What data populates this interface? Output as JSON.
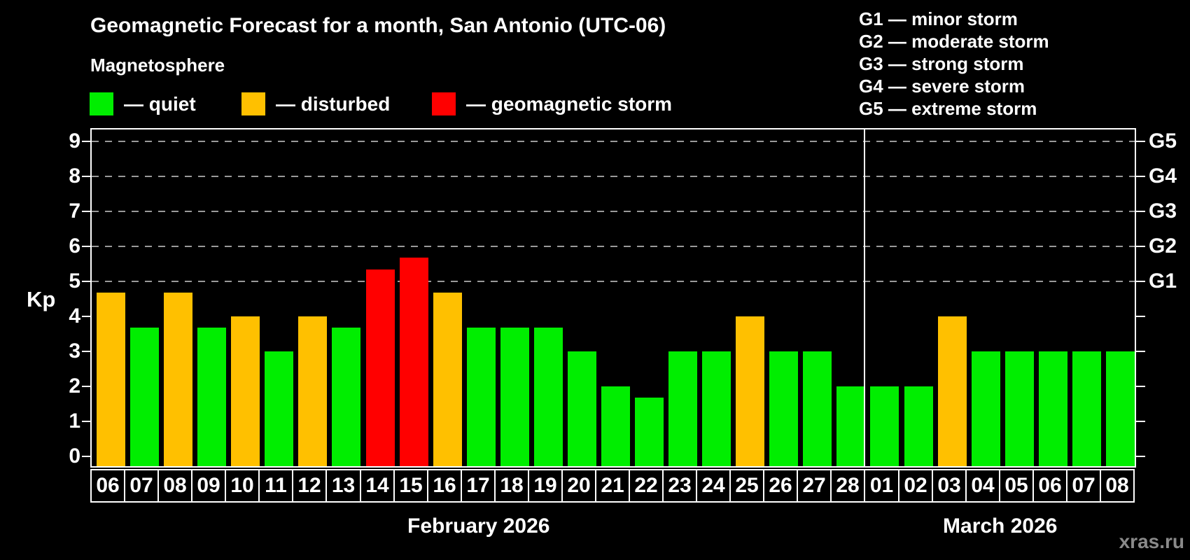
{
  "title": "Geomagnetic Forecast for a month, San Antonio (UTC-06)",
  "subtitle": "Magnetosphere",
  "watermark": "xras.ru",
  "legend": {
    "items": [
      {
        "status": "quiet",
        "label": "— quiet"
      },
      {
        "status": "disturbed",
        "label": "— disturbed"
      },
      {
        "status": "storm",
        "label": "— geomagnetic storm"
      }
    ]
  },
  "g_legend": {
    "items": [
      "G1 — minor storm",
      "G2 — moderate storm",
      "G3 — strong storm",
      "G4 — severe storm",
      "G5 — extreme storm"
    ]
  },
  "chart_data": {
    "type": "bar",
    "title": "Geomagnetic Forecast for a month, San Antonio (UTC-06)",
    "ylabel": "Kp",
    "ylim": [
      0,
      9
    ],
    "y_ticks": [
      0,
      1,
      2,
      3,
      4,
      5,
      6,
      7,
      8,
      9
    ],
    "grid_levels": [
      5,
      6,
      7,
      8,
      9
    ],
    "grid_on": true,
    "legend_position": "top-left",
    "right_axis": [
      {
        "level": 5,
        "label": "G1"
      },
      {
        "level": 6,
        "label": "G2"
      },
      {
        "level": 7,
        "label": "G3"
      },
      {
        "level": 8,
        "label": "G4"
      },
      {
        "level": 9,
        "label": "G5"
      }
    ],
    "status_colors": {
      "quiet": "#00ee00",
      "disturbed": "#ffc000",
      "storm": "#ff0000"
    },
    "months": [
      {
        "label": "February 2026",
        "days": [
          {
            "day": "06",
            "kp": 4.67,
            "status": "disturbed"
          },
          {
            "day": "07",
            "kp": 3.67,
            "status": "quiet"
          },
          {
            "day": "08",
            "kp": 4.67,
            "status": "disturbed"
          },
          {
            "day": "09",
            "kp": 3.67,
            "status": "quiet"
          },
          {
            "day": "10",
            "kp": 4,
            "status": "disturbed"
          },
          {
            "day": "11",
            "kp": 3,
            "status": "quiet"
          },
          {
            "day": "12",
            "kp": 4,
            "status": "disturbed"
          },
          {
            "day": "13",
            "kp": 3.67,
            "status": "quiet"
          },
          {
            "day": "14",
            "kp": 5.33,
            "status": "storm"
          },
          {
            "day": "15",
            "kp": 5.67,
            "status": "storm"
          },
          {
            "day": "16",
            "kp": 4.67,
            "status": "disturbed"
          },
          {
            "day": "17",
            "kp": 3.67,
            "status": "quiet"
          },
          {
            "day": "18",
            "kp": 3.67,
            "status": "quiet"
          },
          {
            "day": "19",
            "kp": 3.67,
            "status": "quiet"
          },
          {
            "day": "20",
            "kp": 3,
            "status": "quiet"
          },
          {
            "day": "21",
            "kp": 2,
            "status": "quiet"
          },
          {
            "day": "22",
            "kp": 1.67,
            "status": "quiet"
          },
          {
            "day": "23",
            "kp": 3,
            "status": "quiet"
          },
          {
            "day": "24",
            "kp": 3,
            "status": "quiet"
          },
          {
            "day": "25",
            "kp": 4,
            "status": "disturbed"
          },
          {
            "day": "26",
            "kp": 3,
            "status": "quiet"
          },
          {
            "day": "27",
            "kp": 3,
            "status": "quiet"
          },
          {
            "day": "28",
            "kp": 2,
            "status": "quiet"
          }
        ]
      },
      {
        "label": "March 2026",
        "days": [
          {
            "day": "01",
            "kp": 2,
            "status": "quiet"
          },
          {
            "day": "02",
            "kp": 2,
            "status": "quiet"
          },
          {
            "day": "03",
            "kp": 4,
            "status": "disturbed"
          },
          {
            "day": "04",
            "kp": 3,
            "status": "quiet"
          },
          {
            "day": "05",
            "kp": 3,
            "status": "quiet"
          },
          {
            "day": "06",
            "kp": 3,
            "status": "quiet"
          },
          {
            "day": "07",
            "kp": 3,
            "status": "quiet"
          },
          {
            "day": "08",
            "kp": 3,
            "status": "quiet"
          }
        ]
      }
    ]
  }
}
